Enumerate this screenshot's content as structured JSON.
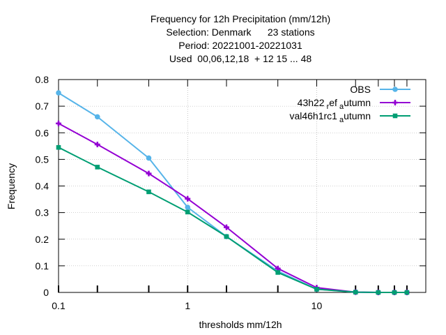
{
  "chart_data": {
    "type": "line",
    "title_lines": [
      "Frequency  for 12h Precipitation (mm/12h)",
      "Selection: Denmark      23 stations",
      "Period: 20221001-20221031",
      "Used  00,06,12,18  + 12 15 ... 48"
    ],
    "xlabel": "thresholds mm/12h",
    "ylabel": "Frequency",
    "x_scale": "log",
    "xlim": [
      0.1,
      70
    ],
    "ylim": [
      0,
      0.8
    ],
    "x_ticks": [
      0.1,
      1,
      10
    ],
    "x_tick_labels": [
      "0.1",
      "1",
      "10"
    ],
    "y_ticks": [
      0,
      0.1,
      0.2,
      0.3,
      0.4,
      0.5,
      0.6,
      0.7,
      0.8
    ],
    "y_tick_labels": [
      "0",
      "0.1",
      "0.2",
      "0.3",
      "0.4",
      "0.5",
      "0.6",
      "0.7",
      "0.8"
    ],
    "grid": true,
    "legend_position": "top-right",
    "x": [
      0.1,
      0.2,
      0.5,
      1,
      2,
      5,
      10,
      20,
      30,
      40,
      50
    ],
    "series": [
      {
        "name": "OBS",
        "legend_parts": [
          "OBS"
        ],
        "color": "#56b4e9",
        "marker": "circle",
        "values": [
          0.75,
          0.66,
          0.505,
          0.32,
          0.21,
          0.08,
          0.012,
          0.001,
          0.0,
          0.0,
          0.0
        ]
      },
      {
        "name": "43h22_ref_autumn",
        "legend_parts": [
          "43h22",
          "r",
          "ef",
          "a",
          "utumn"
        ],
        "color": "#9400d3",
        "marker": "plus",
        "values": [
          0.635,
          0.556,
          0.447,
          0.352,
          0.245,
          0.09,
          0.018,
          0.001,
          0.0,
          0.0,
          0.0
        ]
      },
      {
        "name": "val46h1rc1_autumn",
        "legend_parts": [
          "val46h1rc1",
          "a",
          "utumn"
        ],
        "color": "#009e73",
        "marker": "square",
        "values": [
          0.545,
          0.471,
          0.378,
          0.302,
          0.21,
          0.075,
          0.012,
          0.001,
          0.0,
          0.0,
          0.0
        ]
      }
    ]
  }
}
